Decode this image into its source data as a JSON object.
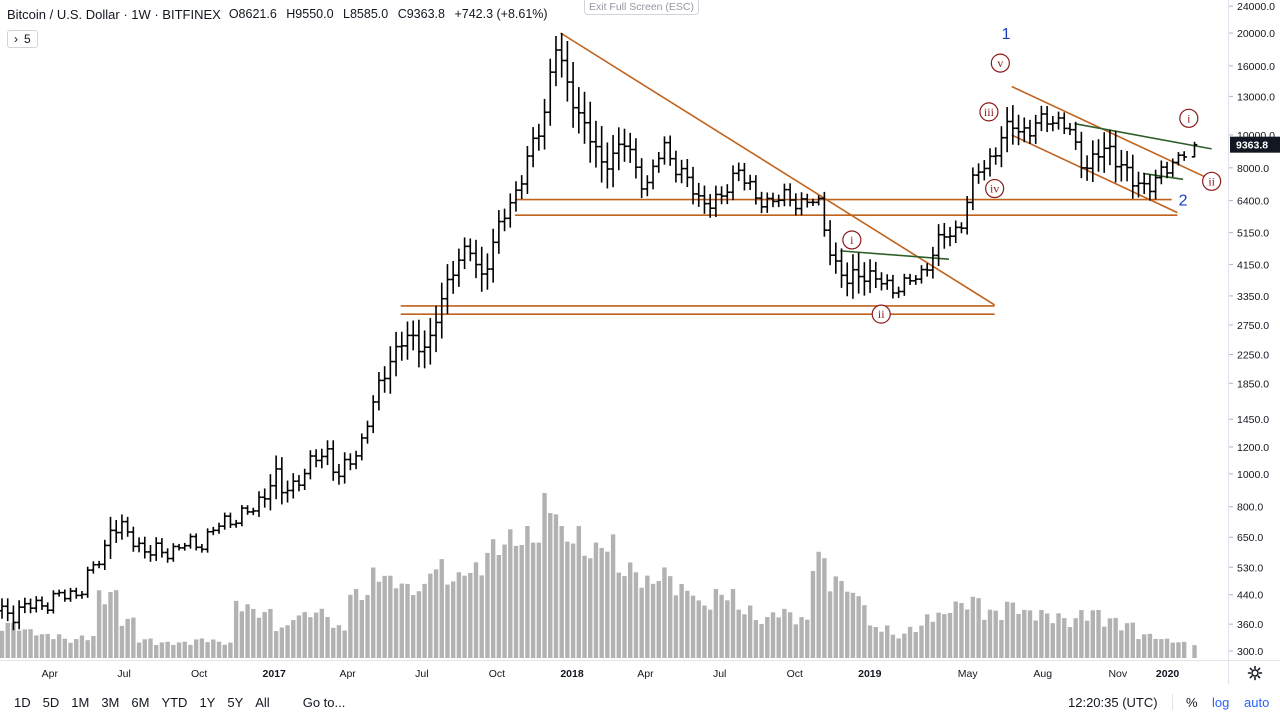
{
  "legend": {
    "title": "Bitcoin / U.S. Dollar · 1W · BITFINEX",
    "open": "O8621.6",
    "high": "H9550.0",
    "low": "L8585.0",
    "close": "C9363.8",
    "change": "+742.3 (+8.61%)"
  },
  "indicator_badge": {
    "chevron": "›",
    "value": "5"
  },
  "fullscreen_hint": "Exit Full Screen (ESC)",
  "price_axis": {
    "ticks": [
      "24000.0",
      "20000.0",
      "16000.0",
      "13000.0",
      "10000.0",
      "8000.0",
      "6400.0",
      "5150.0",
      "4150.0",
      "3350.0",
      "2750.0",
      "2250.0",
      "1850.0",
      "1450.0",
      "1200.0",
      "1000.0",
      "800.0",
      "650.0",
      "530.0",
      "440.0",
      "360.0",
      "300.0"
    ],
    "last_price_label": "9363.8",
    "last_price_color": "#131722"
  },
  "time_axis": {
    "labels": [
      "Apr",
      "Jul",
      "Oct",
      "2017",
      "Apr",
      "Jul",
      "Oct",
      "2018",
      "Apr",
      "Jul",
      "Oct",
      "2019",
      "May",
      "Aug",
      "Nov",
      "2020"
    ],
    "bold": [
      "2017",
      "2018",
      "2019",
      "2020"
    ]
  },
  "bottom_bar": {
    "ranges": [
      "1D",
      "5D",
      "1M",
      "3M",
      "6M",
      "YTD",
      "1Y",
      "5Y",
      "All"
    ],
    "goto": "Go to...",
    "clock": "12:20:35 (UTC)",
    "percent": "%",
    "log": "log",
    "auto": "auto"
  },
  "colors": {
    "bars": "#000000",
    "volume": "#b2b2b2",
    "trendline": "#c0621c",
    "channel_green": "#2e5e2a",
    "wave_label": "#8b1a1a",
    "primary_wave_label": "#1c3fc0"
  },
  "annotations": {
    "primary": [
      "1",
      "2"
    ],
    "minor": [
      "v",
      "iii",
      "iv",
      "i",
      "ii",
      "i",
      "ii"
    ]
  },
  "chart_data": {
    "type": "ohlc",
    "symbol": "BTCUSD",
    "interval": "1W",
    "scale": "log",
    "ylim": [
      290,
      24000
    ],
    "xlim": [
      "2016-02-01",
      "2020-02-10"
    ],
    "last": 9363.8,
    "series": [
      {
        "date": "2016-02-15",
        "high": 420,
        "low": 360,
        "close": 390
      },
      {
        "date": "2016-03-14",
        "high": 430,
        "low": 395,
        "close": 410
      },
      {
        "date": "2016-04-11",
        "high": 440,
        "low": 415,
        "close": 430
      },
      {
        "date": "2016-05-09",
        "high": 470,
        "low": 440,
        "close": 455
      },
      {
        "date": "2016-06-06",
        "high": 600,
        "low": 560,
        "close": 590
      },
      {
        "date": "2016-06-13",
        "high": 790,
        "low": 600,
        "close": 700
      },
      {
        "date": "2016-07-04",
        "high": 700,
        "low": 640,
        "close": 670
      },
      {
        "date": "2016-08-01",
        "high": 620,
        "low": 540,
        "close": 580
      },
      {
        "date": "2016-09-05",
        "high": 620,
        "low": 590,
        "close": 605
      },
      {
        "date": "2016-10-03",
        "high": 640,
        "low": 600,
        "close": 630
      },
      {
        "date": "2016-11-07",
        "high": 750,
        "low": 700,
        "close": 740
      },
      {
        "date": "2016-12-05",
        "high": 790,
        "low": 750,
        "close": 770
      },
      {
        "date": "2017-01-02",
        "high": 1150,
        "low": 880,
        "close": 1000
      },
      {
        "date": "2017-01-09",
        "high": 950,
        "low": 750,
        "close": 870
      },
      {
        "date": "2017-02-06",
        "high": 1050,
        "low": 960,
        "close": 1000
      },
      {
        "date": "2017-03-06",
        "high": 1300,
        "low": 1100,
        "close": 1200
      },
      {
        "date": "2017-03-20",
        "high": 1050,
        "low": 890,
        "close": 960
      },
      {
        "date": "2017-04-17",
        "high": 1250,
        "low": 1150,
        "close": 1230
      },
      {
        "date": "2017-05-08",
        "high": 1800,
        "low": 1550,
        "close": 1750
      },
      {
        "date": "2017-05-22",
        "high": 2700,
        "low": 2000,
        "close": 2200
      },
      {
        "date": "2017-06-12",
        "high": 3000,
        "low": 2300,
        "close": 2500
      },
      {
        "date": "2017-07-10",
        "high": 2600,
        "low": 1850,
        "close": 2400
      },
      {
        "date": "2017-08-07",
        "high": 4400,
        "low": 3300,
        "close": 4100
      },
      {
        "date": "2017-08-28",
        "high": 4900,
        "low": 4300,
        "close": 4600
      },
      {
        "date": "2017-09-11",
        "high": 4200,
        "low": 2950,
        "close": 3800
      },
      {
        "date": "2017-10-09",
        "high": 5800,
        "low": 4800,
        "close": 5700
      },
      {
        "date": "2017-10-30",
        "high": 7800,
        "low": 6600,
        "close": 7400
      },
      {
        "date": "2017-11-27",
        "high": 11800,
        "low": 9100,
        "close": 11200
      },
      {
        "date": "2017-12-11",
        "high": 20000,
        "low": 15400,
        "close": 19000
      },
      {
        "date": "2017-12-25",
        "high": 17500,
        "low": 12000,
        "close": 14000
      },
      {
        "date": "2018-01-15",
        "high": 14000,
        "low": 9300,
        "close": 11000
      },
      {
        "date": "2018-02-05",
        "high": 9000,
        "low": 6000,
        "close": 8100
      },
      {
        "date": "2018-03-05",
        "high": 11600,
        "low": 8500,
        "close": 9500
      },
      {
        "date": "2018-04-02",
        "high": 7500,
        "low": 6500,
        "close": 7000
      },
      {
        "date": "2018-04-23",
        "high": 9800,
        "low": 8700,
        "close": 9300
      },
      {
        "date": "2018-06-04",
        "high": 7700,
        "low": 6200,
        "close": 6500
      },
      {
        "date": "2018-07-02",
        "high": 6800,
        "low": 5800,
        "close": 6300
      },
      {
        "date": "2018-07-23",
        "high": 8500,
        "low": 7300,
        "close": 8200
      },
      {
        "date": "2018-08-13",
        "high": 6700,
        "low": 5900,
        "close": 6400
      },
      {
        "date": "2018-09-10",
        "high": 6800,
        "low": 6100,
        "close": 6500
      },
      {
        "date": "2018-10-08",
        "high": 7100,
        "low": 6200,
        "close": 6400
      },
      {
        "date": "2018-10-29",
        "high": 6500,
        "low": 6200,
        "close": 6300
      },
      {
        "date": "2018-11-19",
        "high": 5000,
        "low": 3900,
        "close": 4200
      },
      {
        "date": "2018-12-03",
        "high": 4200,
        "low": 3300,
        "close": 3600
      },
      {
        "date": "2018-12-17",
        "high": 4500,
        "low": 3200,
        "close": 4000
      },
      {
        "date": "2019-01-14",
        "high": 4000,
        "low": 3500,
        "close": 3650
      },
      {
        "date": "2019-02-11",
        "high": 3700,
        "low": 3400,
        "close": 3550
      },
      {
        "date": "2019-03-04",
        "high": 4000,
        "low": 3700,
        "close": 3900
      },
      {
        "date": "2019-04-01",
        "high": 5200,
        "low": 4100,
        "close": 5000
      },
      {
        "date": "2019-04-22",
        "high": 5600,
        "low": 5100,
        "close": 5400
      },
      {
        "date": "2019-05-13",
        "high": 8300,
        "low": 7000,
        "close": 7900
      },
      {
        "date": "2019-06-03",
        "high": 9200,
        "low": 7900,
        "close": 8800
      },
      {
        "date": "2019-06-24",
        "high": 13900,
        "low": 10000,
        "close": 11000
      },
      {
        "date": "2019-07-15",
        "high": 11000,
        "low": 9400,
        "close": 10000
      },
      {
        "date": "2019-08-05",
        "high": 12300,
        "low": 10500,
        "close": 11500
      },
      {
        "date": "2019-09-02",
        "high": 10900,
        "low": 9900,
        "close": 10300
      },
      {
        "date": "2019-09-23",
        "high": 9900,
        "low": 7800,
        "close": 8000
      },
      {
        "date": "2019-10-21",
        "high": 10300,
        "low": 7400,
        "close": 9300
      },
      {
        "date": "2019-11-18",
        "high": 8500,
        "low": 6600,
        "close": 7200
      },
      {
        "date": "2019-12-16",
        "high": 7500,
        "low": 6400,
        "close": 7200
      },
      {
        "date": "2020-01-13",
        "high": 9000,
        "low": 8500,
        "close": 8700
      },
      {
        "date": "2020-02-03",
        "high": 9550,
        "low": 8585,
        "close": 9363.8
      }
    ],
    "volume_relative": [
      0.22,
      0.18,
      0.15,
      0.12,
      0.14,
      0.42,
      0.25,
      0.12,
      0.1,
      0.1,
      0.12,
      0.1,
      0.35,
      0.3,
      0.2,
      0.28,
      0.3,
      0.2,
      0.42,
      0.55,
      0.5,
      0.45,
      0.6,
      0.52,
      0.58,
      0.72,
      0.78,
      0.8,
      1.0,
      0.8,
      0.7,
      0.75,
      0.58,
      0.5,
      0.55,
      0.45,
      0.35,
      0.42,
      0.32,
      0.25,
      0.3,
      0.25,
      0.65,
      0.5,
      0.4,
      0.2,
      0.15,
      0.2,
      0.28,
      0.35,
      0.38,
      0.3,
      0.35,
      0.3,
      0.28,
      0.25,
      0.3,
      0.25,
      0.22,
      0.15,
      0.12,
      0.1
    ]
  }
}
